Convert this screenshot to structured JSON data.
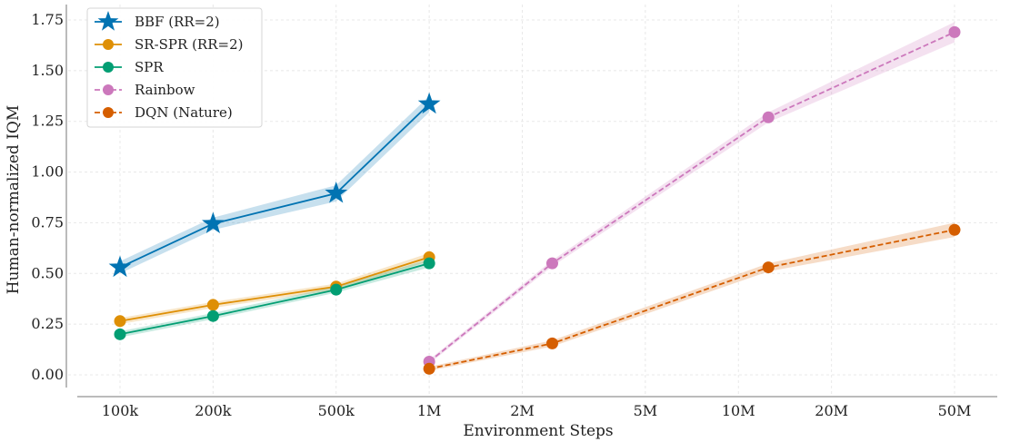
{
  "chart_data": {
    "type": "line",
    "xlabel": "Environment Steps",
    "ylabel": "Human-normalized IQM",
    "x_scale": "log",
    "x_ticks": [
      {
        "value": 100000,
        "label": "100k"
      },
      {
        "value": 200000,
        "label": "200k"
      },
      {
        "value": 500000,
        "label": "500k"
      },
      {
        "value": 1000000,
        "label": "1M"
      },
      {
        "value": 2000000,
        "label": "2M"
      },
      {
        "value": 5000000,
        "label": "5M"
      },
      {
        "value": 10000000,
        "label": "10M"
      },
      {
        "value": 20000000,
        "label": "20M"
      },
      {
        "value": 50000000,
        "label": "50M"
      }
    ],
    "y_ticks": [
      "0.00",
      "0.25",
      "0.50",
      "0.75",
      "1.00",
      "1.25",
      "1.50",
      "1.75"
    ],
    "ylim": [
      -0.07,
      1.8
    ],
    "grid": true,
    "legend_position": "top-left",
    "series": [
      {
        "name": "BBF (RR=2)",
        "color": "#0173b2",
        "marker": "star",
        "line_style": "solid",
        "x": [
          100000,
          200000,
          500000,
          1000000
        ],
        "y": [
          0.53,
          0.745,
          0.895,
          1.335
        ],
        "band": [
          0.03,
          0.03,
          0.04,
          0.04
        ]
      },
      {
        "name": "SR-SPR (RR=2)",
        "color": "#de8f05",
        "marker": "circle",
        "line_style": "solid",
        "x": [
          100000,
          200000,
          500000,
          1000000
        ],
        "y": [
          0.265,
          0.345,
          0.435,
          0.58
        ],
        "band": [
          0.015,
          0.015,
          0.015,
          0.02
        ]
      },
      {
        "name": "SPR",
        "color": "#029e73",
        "marker": "circle",
        "line_style": "solid",
        "x": [
          100000,
          200000,
          500000,
          1000000
        ],
        "y": [
          0.2,
          0.29,
          0.42,
          0.55
        ],
        "band": [
          0.015,
          0.015,
          0.015,
          0.02
        ]
      },
      {
        "name": "Rainbow",
        "color": "#cc78bc",
        "marker": "circle",
        "line_style": "dashed",
        "x": [
          1000000,
          2500000,
          12500000,
          50000000
        ],
        "y": [
          0.065,
          0.55,
          1.27,
          1.69
        ],
        "band": [
          0.01,
          0.015,
          0.025,
          0.05
        ]
      },
      {
        "name": "DQN (Nature)",
        "color": "#d55e00",
        "marker": "circle",
        "line_style": "dashed",
        "x": [
          1000000,
          2500000,
          12500000,
          50000000
        ],
        "y": [
          0.03,
          0.155,
          0.53,
          0.715
        ],
        "band": [
          0.01,
          0.015,
          0.02,
          0.035
        ]
      }
    ]
  }
}
